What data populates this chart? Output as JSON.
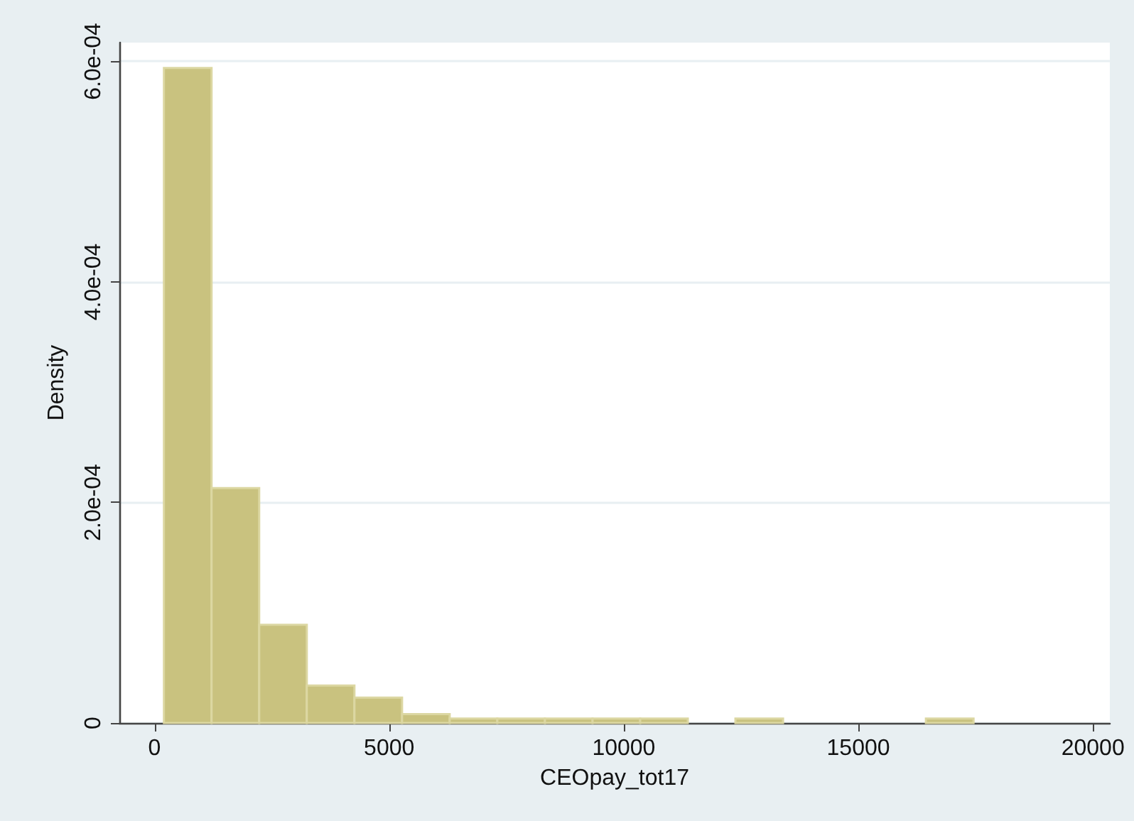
{
  "chart_data": {
    "type": "histogram",
    "xlabel": "CEOpay_tot17",
    "ylabel": "Density",
    "color": "#c9c27f",
    "bins": [
      200,
      1215,
      2230,
      3245,
      4260,
      5275,
      6290,
      7305,
      8320,
      9335,
      10350,
      11365,
      12380,
      13395,
      14410,
      15425,
      16440,
      17455
    ],
    "values": [
      0.000594,
      0.000213,
      8.9e-05,
      3.4e-05,
      2.3e-05,
      8e-06,
      4e-06,
      4e-06,
      4e-06,
      4e-06,
      4e-06,
      0,
      4e-06,
      0,
      0,
      0,
      4e-06
    ],
    "xlim": [
      -750,
      20360
    ],
    "ylim": [
      0,
      0.000617
    ],
    "xticks": [
      0,
      5000,
      10000,
      15000,
      20000
    ],
    "yticks": [
      0,
      {
        "value": 0.0002,
        "label": "2.0e-04"
      },
      {
        "value": 0.0004,
        "label": "4.0e-04"
      },
      {
        "value": 0.0006,
        "label": "6.0e-04"
      }
    ],
    "grid": "y"
  }
}
